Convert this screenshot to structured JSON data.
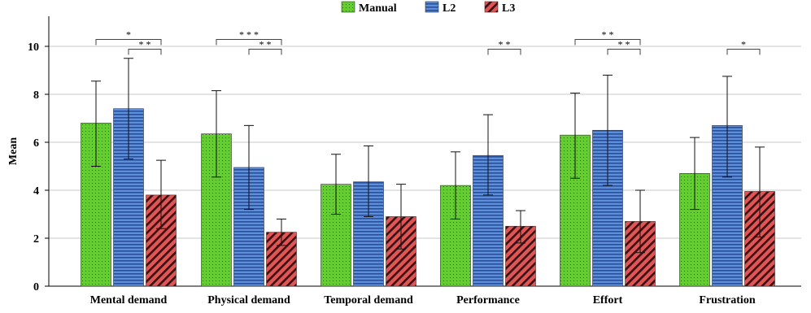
{
  "chart_data": {
    "type": "bar",
    "categories": [
      "Mental demand",
      "Physical demand",
      "Temporal demand",
      "Performance",
      "Effort",
      "Frustration"
    ],
    "series": [
      {
        "name": "Manual",
        "color": "#66cc33",
        "pattern": "dots",
        "values": [
          6.8,
          6.35,
          4.25,
          4.2,
          6.3,
          4.7
        ],
        "error": [
          [
            5.0,
            8.55
          ],
          [
            4.55,
            8.15
          ],
          [
            3.0,
            5.5
          ],
          [
            2.8,
            5.6
          ],
          [
            4.5,
            8.05
          ],
          [
            3.2,
            6.2
          ]
        ]
      },
      {
        "name": "L2",
        "color": "#4b7fcc",
        "pattern": "horizontal-lines",
        "values": [
          7.4,
          4.95,
          4.35,
          5.45,
          6.5,
          6.7
        ],
        "error": [
          [
            5.3,
            9.5
          ],
          [
            3.2,
            6.7
          ],
          [
            2.9,
            5.85
          ],
          [
            3.8,
            7.15
          ],
          [
            4.2,
            8.8
          ],
          [
            4.55,
            8.75
          ]
        ]
      },
      {
        "name": "L3",
        "color": "#d94a4a",
        "pattern": "diagonal-stripes",
        "values": [
          3.8,
          2.25,
          2.9,
          2.5,
          2.7,
          3.95
        ],
        "error": [
          [
            2.4,
            5.25
          ],
          [
            1.7,
            2.8
          ],
          [
            1.55,
            4.25
          ],
          [
            1.8,
            3.15
          ],
          [
            1.4,
            4.0
          ],
          [
            2.05,
            5.8
          ]
        ]
      }
    ],
    "ylabel": "Mean",
    "ylim": [
      0,
      11
    ],
    "yticks": [
      0,
      2,
      4,
      6,
      8,
      10
    ],
    "grid": "horizontal",
    "legend": "top-center",
    "significance": [
      {
        "category": 0,
        "from": 0,
        "to": 2,
        "label": "*",
        "tier": 1
      },
      {
        "category": 0,
        "from": 1,
        "to": 2,
        "label": "* *",
        "tier": 0
      },
      {
        "category": 1,
        "from": 0,
        "to": 2,
        "label": "* * *",
        "tier": 1
      },
      {
        "category": 1,
        "from": 1,
        "to": 2,
        "label": "* *",
        "tier": 0
      },
      {
        "category": 3,
        "from": 1,
        "to": 2,
        "label": "* *",
        "tier": 0
      },
      {
        "category": 4,
        "from": 0,
        "to": 2,
        "label": "* *",
        "tier": 1
      },
      {
        "category": 4,
        "from": 1,
        "to": 2,
        "label": "* *",
        "tier": 0
      },
      {
        "category": 5,
        "from": 1,
        "to": 2,
        "label": "*",
        "tier": 0
      }
    ]
  }
}
